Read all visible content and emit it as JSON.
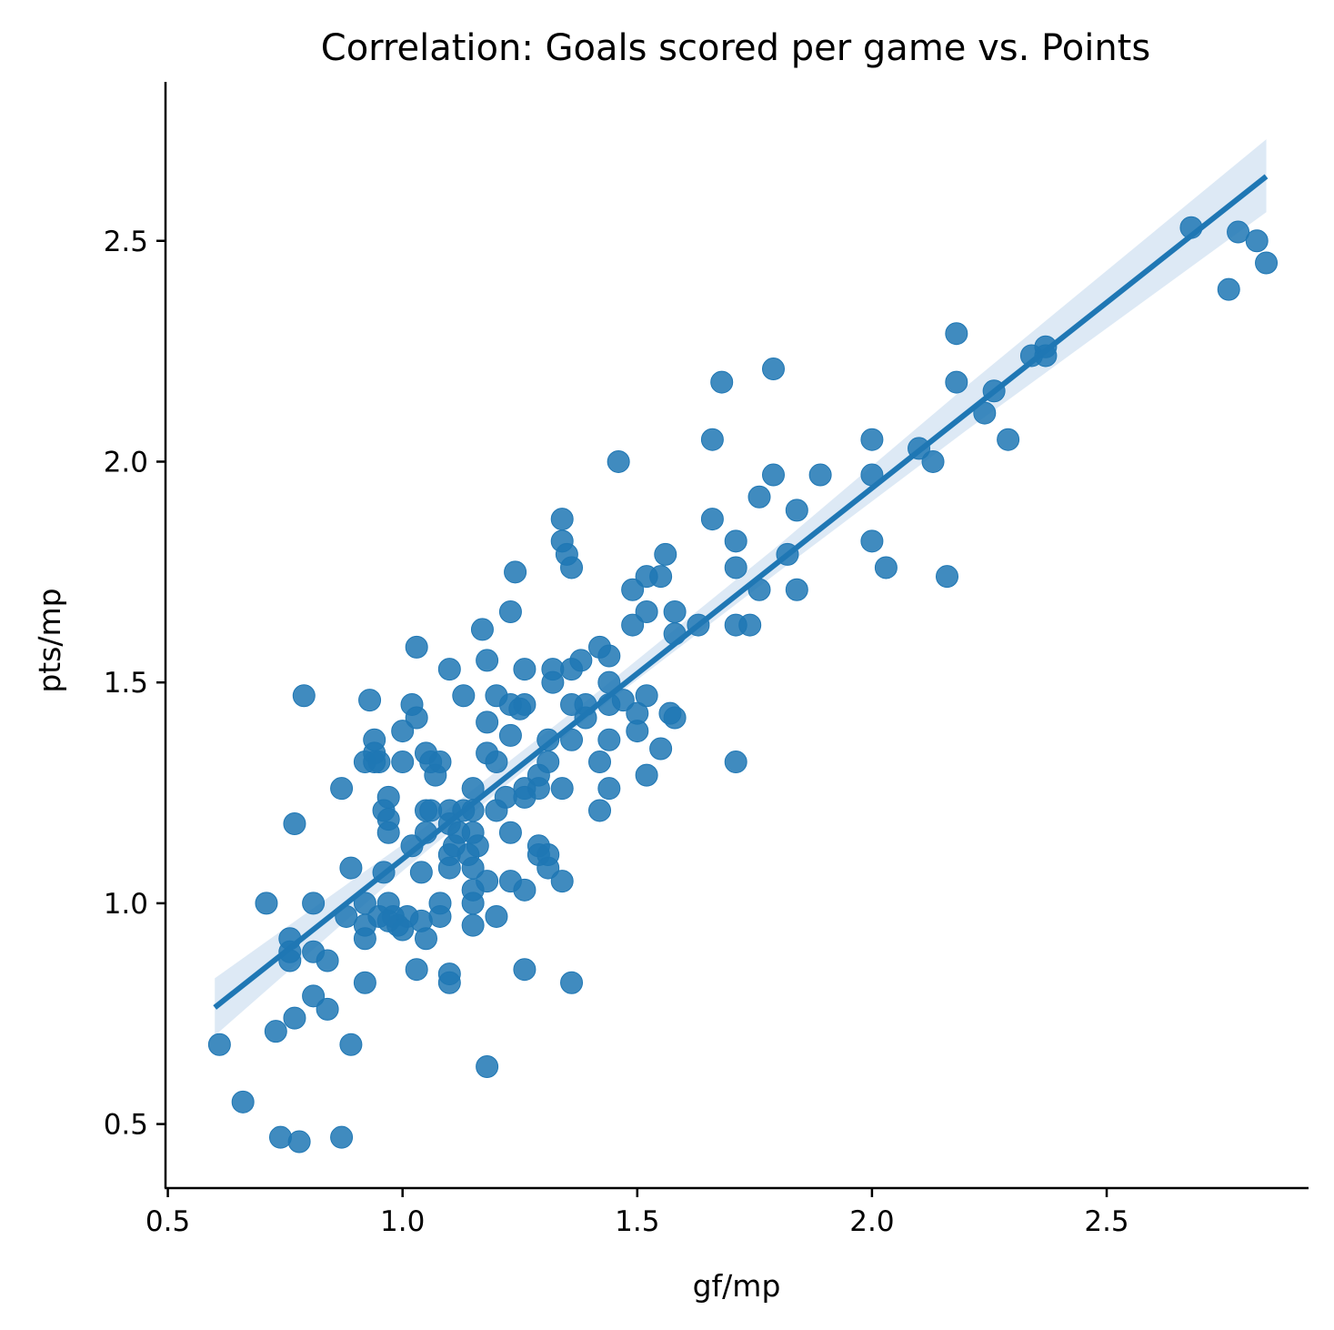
{
  "chart_data": {
    "type": "scatter",
    "title": "Correlation: Goals scored per game vs. Points",
    "xlabel": "gf/mp",
    "ylabel": "pts/mp",
    "xlim": [
      0.495,
      2.93
    ],
    "ylim": [
      0.355,
      2.86
    ],
    "xticks": [
      {
        "value": 0.5,
        "label": "0.5"
      },
      {
        "value": 1.0,
        "label": "1.0"
      },
      {
        "value": 1.5,
        "label": "1.5"
      },
      {
        "value": 2.0,
        "label": "2.0"
      },
      {
        "value": 2.5,
        "label": "2.5"
      }
    ],
    "yticks": [
      {
        "value": 0.5,
        "label": "0.5"
      },
      {
        "value": 1.0,
        "label": "1.0"
      },
      {
        "value": 1.5,
        "label": "1.5"
      },
      {
        "value": 2.0,
        "label": "2.0"
      },
      {
        "value": 2.5,
        "label": "2.5"
      }
    ],
    "grid": false,
    "colors": {
      "points": "#1f77b4",
      "line": "#1f77b4",
      "band": "#c6dbef"
    },
    "regression": {
      "x_start": 0.6,
      "x_end": 2.84,
      "y_start": 0.764,
      "y_end": 2.646
    },
    "confidence_band": [
      {
        "x": 0.6,
        "lower": 0.7,
        "upper": 0.83
      },
      {
        "x": 1.0,
        "lower": 1.073,
        "upper": 1.133
      },
      {
        "x": 1.4,
        "lower": 1.425,
        "upper": 1.465
      },
      {
        "x": 1.8,
        "lower": 1.75,
        "upper": 1.81
      },
      {
        "x": 2.2,
        "lower": 2.07,
        "upper": 2.17
      },
      {
        "x": 2.84,
        "lower": 2.565,
        "upper": 2.73
      }
    ],
    "points": [
      [
        0.61,
        0.68
      ],
      [
        0.66,
        0.55
      ],
      [
        0.71,
        1.0
      ],
      [
        0.73,
        0.71
      ],
      [
        0.74,
        0.47
      ],
      [
        0.76,
        0.92
      ],
      [
        0.76,
        0.89
      ],
      [
        0.76,
        0.87
      ],
      [
        0.77,
        1.18
      ],
      [
        0.77,
        0.74
      ],
      [
        0.78,
        0.46
      ],
      [
        0.79,
        1.47
      ],
      [
        0.81,
        1.0
      ],
      [
        0.81,
        0.89
      ],
      [
        0.81,
        0.79
      ],
      [
        0.84,
        0.87
      ],
      [
        0.84,
        0.76
      ],
      [
        0.87,
        1.26
      ],
      [
        0.87,
        0.47
      ],
      [
        0.88,
        0.97
      ],
      [
        0.89,
        1.08
      ],
      [
        0.89,
        0.68
      ],
      [
        0.92,
        1.32
      ],
      [
        0.92,
        1.0
      ],
      [
        0.92,
        0.95
      ],
      [
        0.92,
        0.92
      ],
      [
        0.92,
        0.82
      ],
      [
        0.93,
        1.46
      ],
      [
        0.94,
        1.37
      ],
      [
        0.94,
        1.34
      ],
      [
        0.94,
        1.32
      ],
      [
        0.95,
        1.32
      ],
      [
        0.95,
        0.97
      ],
      [
        0.96,
        1.21
      ],
      [
        0.96,
        1.07
      ],
      [
        0.97,
        1.24
      ],
      [
        0.97,
        1.19
      ],
      [
        0.97,
        1.16
      ],
      [
        0.97,
        1.0
      ],
      [
        0.97,
        0.96
      ],
      [
        0.98,
        0.97
      ],
      [
        0.99,
        0.95
      ],
      [
        1.0,
        1.39
      ],
      [
        1.0,
        1.32
      ],
      [
        1.0,
        0.94
      ],
      [
        1.01,
        0.97
      ],
      [
        1.02,
        1.13
      ],
      [
        1.02,
        1.45
      ],
      [
        1.03,
        1.58
      ],
      [
        1.03,
        1.42
      ],
      [
        1.03,
        0.85
      ],
      [
        1.04,
        0.96
      ],
      [
        1.04,
        1.07
      ],
      [
        1.05,
        1.34
      ],
      [
        1.05,
        1.21
      ],
      [
        1.05,
        1.16
      ],
      [
        1.05,
        0.92
      ],
      [
        1.06,
        1.32
      ],
      [
        1.06,
        1.21
      ],
      [
        1.07,
        1.29
      ],
      [
        1.08,
        1.32
      ],
      [
        1.08,
        1.0
      ],
      [
        1.08,
        0.97
      ],
      [
        1.1,
        1.53
      ],
      [
        1.1,
        1.21
      ],
      [
        1.1,
        1.18
      ],
      [
        1.1,
        1.11
      ],
      [
        1.1,
        1.08
      ],
      [
        1.1,
        0.84
      ],
      [
        1.1,
        0.82
      ],
      [
        1.11,
        1.13
      ],
      [
        1.12,
        1.16
      ],
      [
        1.13,
        1.47
      ],
      [
        1.13,
        1.21
      ],
      [
        1.14,
        1.11
      ],
      [
        1.15,
        1.26
      ],
      [
        1.15,
        1.21
      ],
      [
        1.15,
        1.16
      ],
      [
        1.15,
        1.08
      ],
      [
        1.15,
        1.03
      ],
      [
        1.15,
        1.0
      ],
      [
        1.15,
        0.95
      ],
      [
        1.16,
        1.13
      ],
      [
        1.17,
        1.62
      ],
      [
        1.18,
        1.55
      ],
      [
        1.18,
        1.41
      ],
      [
        1.18,
        1.34
      ],
      [
        1.18,
        1.05
      ],
      [
        1.18,
        0.63
      ],
      [
        1.2,
        1.47
      ],
      [
        1.2,
        1.32
      ],
      [
        1.2,
        1.21
      ],
      [
        1.2,
        0.97
      ],
      [
        1.22,
        1.24
      ],
      [
        1.23,
        1.66
      ],
      [
        1.23,
        1.45
      ],
      [
        1.23,
        1.38
      ],
      [
        1.23,
        1.16
      ],
      [
        1.23,
        1.05
      ],
      [
        1.24,
        1.75
      ],
      [
        1.25,
        1.44
      ],
      [
        1.26,
        1.53
      ],
      [
        1.26,
        1.45
      ],
      [
        1.26,
        1.26
      ],
      [
        1.26,
        1.24
      ],
      [
        1.26,
        1.03
      ],
      [
        1.26,
        0.85
      ],
      [
        1.29,
        1.29
      ],
      [
        1.29,
        1.26
      ],
      [
        1.29,
        1.13
      ],
      [
        1.29,
        1.11
      ],
      [
        1.31,
        1.37
      ],
      [
        1.31,
        1.32
      ],
      [
        1.31,
        1.11
      ],
      [
        1.31,
        1.08
      ],
      [
        1.32,
        1.53
      ],
      [
        1.32,
        1.5
      ],
      [
        1.34,
        1.87
      ],
      [
        1.34,
        1.82
      ],
      [
        1.34,
        1.26
      ],
      [
        1.34,
        1.05
      ],
      [
        1.35,
        1.79
      ],
      [
        1.36,
        1.76
      ],
      [
        1.36,
        1.53
      ],
      [
        1.36,
        1.45
      ],
      [
        1.36,
        1.37
      ],
      [
        1.36,
        0.82
      ],
      [
        1.38,
        1.55
      ],
      [
        1.39,
        1.45
      ],
      [
        1.39,
        1.42
      ],
      [
        1.42,
        1.58
      ],
      [
        1.42,
        1.32
      ],
      [
        1.42,
        1.21
      ],
      [
        1.44,
        1.56
      ],
      [
        1.44,
        1.5
      ],
      [
        1.44,
        1.45
      ],
      [
        1.44,
        1.37
      ],
      [
        1.44,
        1.26
      ],
      [
        1.46,
        2.0
      ],
      [
        1.47,
        1.46
      ],
      [
        1.49,
        1.71
      ],
      [
        1.49,
        1.63
      ],
      [
        1.5,
        1.43
      ],
      [
        1.5,
        1.39
      ],
      [
        1.52,
        1.74
      ],
      [
        1.52,
        1.66
      ],
      [
        1.52,
        1.47
      ],
      [
        1.52,
        1.29
      ],
      [
        1.55,
        1.74
      ],
      [
        1.55,
        1.35
      ],
      [
        1.56,
        1.79
      ],
      [
        1.57,
        1.43
      ],
      [
        1.58,
        1.66
      ],
      [
        1.58,
        1.61
      ],
      [
        1.58,
        1.42
      ],
      [
        1.63,
        1.63
      ],
      [
        1.66,
        2.05
      ],
      [
        1.66,
        1.87
      ],
      [
        1.68,
        2.18
      ],
      [
        1.71,
        1.82
      ],
      [
        1.71,
        1.76
      ],
      [
        1.71,
        1.63
      ],
      [
        1.71,
        1.32
      ],
      [
        1.74,
        1.63
      ],
      [
        1.76,
        1.92
      ],
      [
        1.76,
        1.71
      ],
      [
        1.79,
        2.21
      ],
      [
        1.79,
        1.97
      ],
      [
        1.82,
        1.79
      ],
      [
        1.84,
        1.89
      ],
      [
        1.84,
        1.71
      ],
      [
        1.89,
        1.97
      ],
      [
        2.0,
        2.05
      ],
      [
        2.0,
        1.97
      ],
      [
        2.0,
        1.82
      ],
      [
        2.03,
        1.76
      ],
      [
        2.1,
        2.03
      ],
      [
        2.13,
        2.0
      ],
      [
        2.16,
        1.74
      ],
      [
        2.18,
        2.29
      ],
      [
        2.18,
        2.18
      ],
      [
        2.24,
        2.11
      ],
      [
        2.26,
        2.16
      ],
      [
        2.29,
        2.05
      ],
      [
        2.34,
        2.24
      ],
      [
        2.37,
        2.26
      ],
      [
        2.37,
        2.24
      ],
      [
        2.68,
        2.53
      ],
      [
        2.76,
        2.39
      ],
      [
        2.78,
        2.52
      ],
      [
        2.82,
        2.5
      ],
      [
        2.84,
        2.45
      ]
    ]
  }
}
